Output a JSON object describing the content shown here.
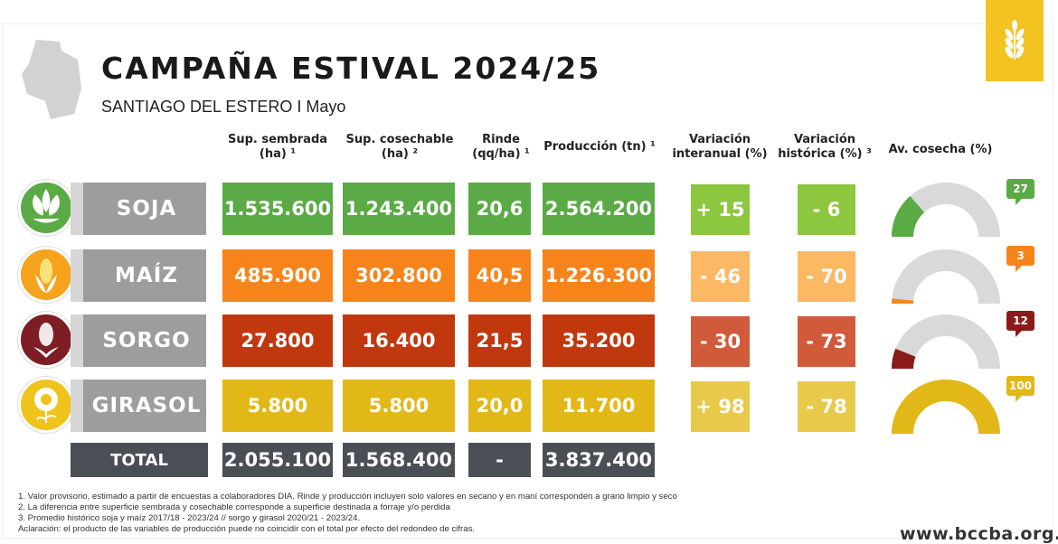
{
  "title": "CAMPAÑA ESTIVAL 2024/25",
  "subtitle": "SANTIAGO DEL ESTERO I Mayo",
  "headers": {
    "sembrada": "Sup. sembrada (ha) ¹",
    "cosechable": "Sup. cosechable (ha) ²",
    "rinde": "Rinde (qq/ha) ¹",
    "produccion": "Producción (tn) ¹",
    "interanual": "Variación interanual (%)",
    "historica": "Variación histórica (%) ³",
    "avance": "Av. cosecha (%)"
  },
  "crops": [
    {
      "name": "SOJA",
      "icon": "soy-leaf-icon",
      "sembrada": "1.535.600",
      "cosechable": "1.243.400",
      "rinde": "20,6",
      "produccion": "2.564.200",
      "interanual": "+ 15",
      "historica": "- 6",
      "avance": 27,
      "avance_label": "27",
      "colors": {
        "main": "#5aaa45",
        "var": "#8dc63f",
        "var2": "#8dc63f",
        "icon": "#5aaa45"
      }
    },
    {
      "name": "MAÍZ",
      "icon": "corn-icon",
      "sembrada": "485.900",
      "cosechable": "302.800",
      "rinde": "40,5",
      "produccion": "1.226.300",
      "interanual": "- 46",
      "historica": "- 70",
      "avance": 3,
      "avance_label": "3",
      "colors": {
        "main": "#f7841b",
        "var": "#fdb863",
        "var2": "#fdb863",
        "icon": "#f5a21c"
      }
    },
    {
      "name": "SORGO",
      "icon": "sorghum-icon",
      "sembrada": "27.800",
      "cosechable": "16.400",
      "rinde": "21,5",
      "produccion": "35.200",
      "interanual": "- 30",
      "historica": "- 73",
      "avance": 12,
      "avance_label": "12",
      "colors": {
        "main": "#c1380f",
        "var": "#d05a3a",
        "var2": "#d05a3a",
        "icon": "#7f1d24",
        "gauge": "#8b1a1a"
      }
    },
    {
      "name": "GIRASOL",
      "icon": "sunflower-icon",
      "sembrada": "5.800",
      "cosechable": "5.800",
      "rinde": "20,0",
      "produccion": "11.700",
      "interanual": "+ 98",
      "historica": "- 78",
      "avance": 100,
      "avance_label": "100",
      "colors": {
        "main": "#e2b818",
        "var": "#e9c94a",
        "var2": "#e9c94a",
        "icon": "#f0c31c"
      }
    }
  ],
  "total": {
    "label": "TOTAL",
    "sembrada": "2.055.100",
    "cosechable": "1.568.400",
    "rinde": "-",
    "produccion": "3.837.400",
    "color": "#4a4f55"
  },
  "notes": [
    "1. Valor provisorio, estimado a partir de encuestas a colaboradores DIA. Rinde y producción incluyen solo valores en secano y en maní corresponden a grano limpio y seco",
    "2. La diferencia entre superficie sembrada y cosechable corresponde a superficie destinada a forraje y/o perdida",
    "3. Promedio histórico soja y maíz 2017/18 - 2023/24 // sorgo y girasol 2020/21 - 2023/24.",
    "Aclaración: el producto de las variables de producción puede no coincidir con el total por efecto del redondeo de cifras."
  ],
  "website": "www.bccba.org.ar",
  "gauge_track_color": "#d9d9d9"
}
